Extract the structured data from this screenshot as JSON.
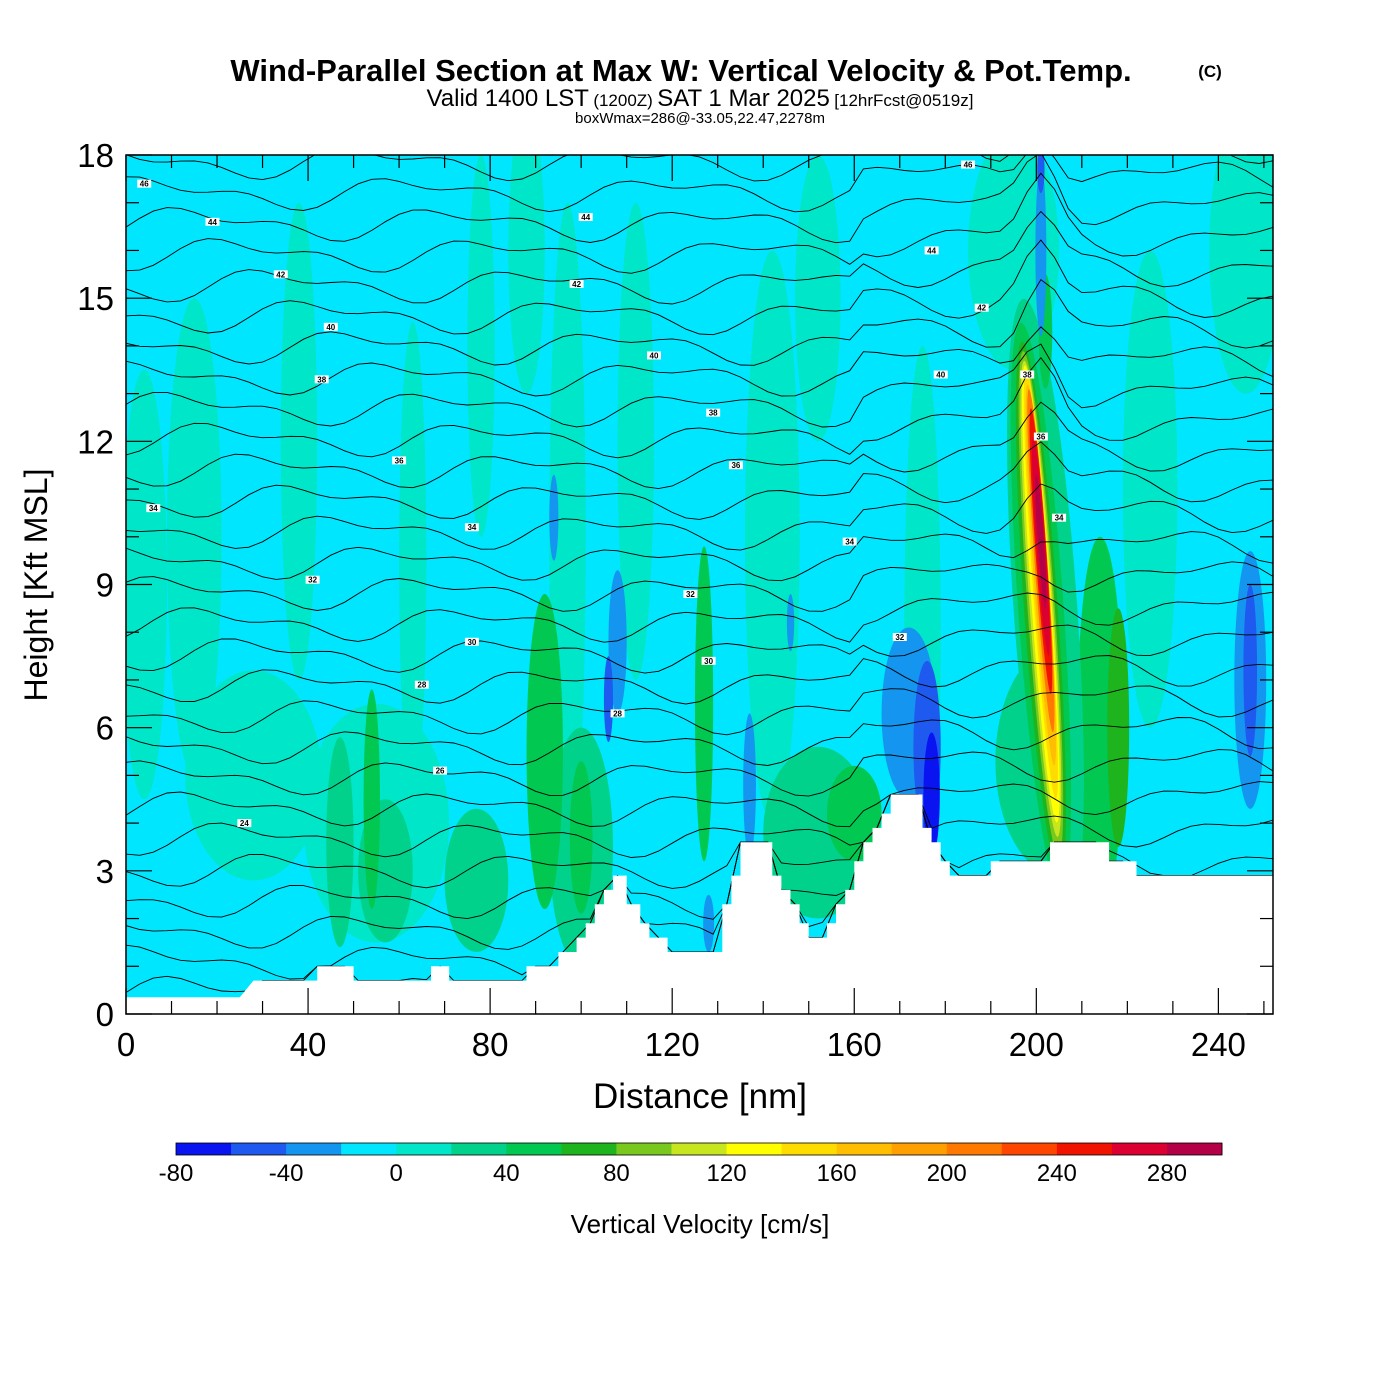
{
  "chart_data": {
    "type": "heatmap",
    "title": "Wind-Parallel Section at Max W: Vertical Velocity & Pot.Temp.",
    "title_mark": "(C)",
    "subtitle": {
      "main": "Valid 1400 LST",
      "utc": "(1200Z)",
      "date": "SAT 1 Mar 2025",
      "forecast": "[12hrFcst@0519z]"
    },
    "note": "boxWmax=286@-33.05,22.47,2278m",
    "xlabel": "Distance [nm]",
    "ylabel": "Height [Kft MSL]",
    "xlim": [
      0,
      252
    ],
    "ylim": [
      0,
      18
    ],
    "xticks": [
      0,
      40,
      80,
      120,
      160,
      200,
      240
    ],
    "yticks": [
      0,
      3,
      6,
      9,
      12,
      15,
      18
    ],
    "colorbar": {
      "label": "Vertical Velocity [cm/s]",
      "levels": [
        -80,
        -60,
        -40,
        -20,
        0,
        20,
        40,
        60,
        80,
        100,
        120,
        140,
        160,
        180,
        200,
        220,
        240,
        260,
        280,
        300
      ],
      "tick_labels": [
        -80,
        -40,
        0,
        40,
        80,
        120,
        160,
        200,
        240,
        280
      ],
      "colors": [
        "#0a14f0",
        "#1e5af0",
        "#1496f0",
        "#00e6ff",
        "#00e6c8",
        "#00d28c",
        "#00c850",
        "#1eb41e",
        "#78c81e",
        "#c8e61e",
        "#ffff00",
        "#ffdc00",
        "#ffbe00",
        "#ffa000",
        "#ff7800",
        "#ff4600",
        "#f01400",
        "#dc0032",
        "#b40046"
      ]
    },
    "terrain_kft": [
      [
        0,
        0.35
      ],
      [
        25,
        0.35
      ],
      [
        28,
        0.7
      ],
      [
        42,
        0.7
      ],
      [
        42,
        1.0
      ],
      [
        50,
        1.0
      ],
      [
        50,
        0.7
      ],
      [
        67,
        0.7
      ],
      [
        67,
        1.0
      ],
      [
        71,
        1.0
      ],
      [
        71,
        0.7
      ],
      [
        88,
        0.7
      ],
      [
        88,
        1.0
      ],
      [
        95,
        1.0
      ],
      [
        95,
        1.3
      ],
      [
        99,
        1.3
      ],
      [
        99,
        1.6
      ],
      [
        101,
        1.6
      ],
      [
        101,
        1.9
      ],
      [
        103,
        1.9
      ],
      [
        103,
        2.3
      ],
      [
        105,
        2.3
      ],
      [
        105,
        2.6
      ],
      [
        107,
        2.6
      ],
      [
        107,
        2.9
      ],
      [
        110,
        2.9
      ],
      [
        110,
        2.3
      ],
      [
        113,
        2.3
      ],
      [
        113,
        1.9
      ],
      [
        115,
        1.9
      ],
      [
        115,
        1.6
      ],
      [
        119,
        1.6
      ],
      [
        119,
        1.3
      ],
      [
        131,
        1.3
      ],
      [
        131,
        2.3
      ],
      [
        133,
        2.3
      ],
      [
        133,
        2.9
      ],
      [
        135,
        2.9
      ],
      [
        135,
        3.6
      ],
      [
        142,
        3.6
      ],
      [
        142,
        2.9
      ],
      [
        144,
        2.9
      ],
      [
        144,
        2.6
      ],
      [
        146,
        2.6
      ],
      [
        146,
        2.3
      ],
      [
        148,
        2.3
      ],
      [
        148,
        1.9
      ],
      [
        150,
        1.9
      ],
      [
        150,
        1.6
      ],
      [
        154,
        1.6
      ],
      [
        154,
        1.9
      ],
      [
        156,
        1.9
      ],
      [
        156,
        2.3
      ],
      [
        158,
        2.3
      ],
      [
        158,
        2.6
      ],
      [
        160,
        2.6
      ],
      [
        160,
        3.2
      ],
      [
        162,
        3.2
      ],
      [
        162,
        3.6
      ],
      [
        164,
        3.6
      ],
      [
        164,
        3.9
      ],
      [
        166,
        3.9
      ],
      [
        166,
        4.2
      ],
      [
        168,
        4.2
      ],
      [
        168,
        4.6
      ],
      [
        175,
        4.6
      ],
      [
        175,
        3.9
      ],
      [
        177,
        3.9
      ],
      [
        177,
        3.6
      ],
      [
        179,
        3.6
      ],
      [
        179,
        3.2
      ],
      [
        181,
        3.2
      ],
      [
        181,
        2.9
      ],
      [
        190,
        2.9
      ],
      [
        190,
        3.2
      ],
      [
        203,
        3.2
      ],
      [
        203,
        3.6
      ],
      [
        216,
        3.6
      ],
      [
        216,
        3.2
      ],
      [
        222,
        3.2
      ],
      [
        222,
        2.9
      ],
      [
        252,
        2.9
      ]
    ],
    "theta_labels": [
      {
        "text": "46",
        "x": 4,
        "y": 17.4
      },
      {
        "text": "44",
        "x": 19,
        "y": 16.6
      },
      {
        "text": "44",
        "x": 101,
        "y": 16.7
      },
      {
        "text": "46",
        "x": 185,
        "y": 17.8
      },
      {
        "text": "44",
        "x": 177,
        "y": 16.0
      },
      {
        "text": "42",
        "x": 34,
        "y": 15.5
      },
      {
        "text": "42",
        "x": 99,
        "y": 15.3
      },
      {
        "text": "42",
        "x": 188,
        "y": 14.8
      },
      {
        "text": "40",
        "x": 45,
        "y": 14.4
      },
      {
        "text": "40",
        "x": 116,
        "y": 13.8
      },
      {
        "text": "40",
        "x": 179,
        "y": 13.4
      },
      {
        "text": "38",
        "x": 43,
        "y": 13.3
      },
      {
        "text": "38",
        "x": 129,
        "y": 12.6
      },
      {
        "text": "38",
        "x": 198,
        "y": 13.4
      },
      {
        "text": "36",
        "x": 60,
        "y": 11.6
      },
      {
        "text": "36",
        "x": 134,
        "y": 11.5
      },
      {
        "text": "36",
        "x": 201,
        "y": 12.1
      },
      {
        "text": "34",
        "x": 6,
        "y": 10.6
      },
      {
        "text": "34",
        "x": 76,
        "y": 10.2
      },
      {
        "text": "34",
        "x": 159,
        "y": 9.9
      },
      {
        "text": "34",
        "x": 205,
        "y": 10.4
      },
      {
        "text": "32",
        "x": 41,
        "y": 9.1
      },
      {
        "text": "32",
        "x": 124,
        "y": 8.8
      },
      {
        "text": "32",
        "x": 170,
        "y": 7.9
      },
      {
        "text": "30",
        "x": 76,
        "y": 7.8
      },
      {
        "text": "30",
        "x": 128,
        "y": 7.4
      },
      {
        "text": "28",
        "x": 65,
        "y": 6.9
      },
      {
        "text": "28",
        "x": 108,
        "y": 6.3
      },
      {
        "text": "26",
        "x": 69,
        "y": 5.1
      },
      {
        "text": "24",
        "x": 26,
        "y": 4.0
      }
    ]
  }
}
